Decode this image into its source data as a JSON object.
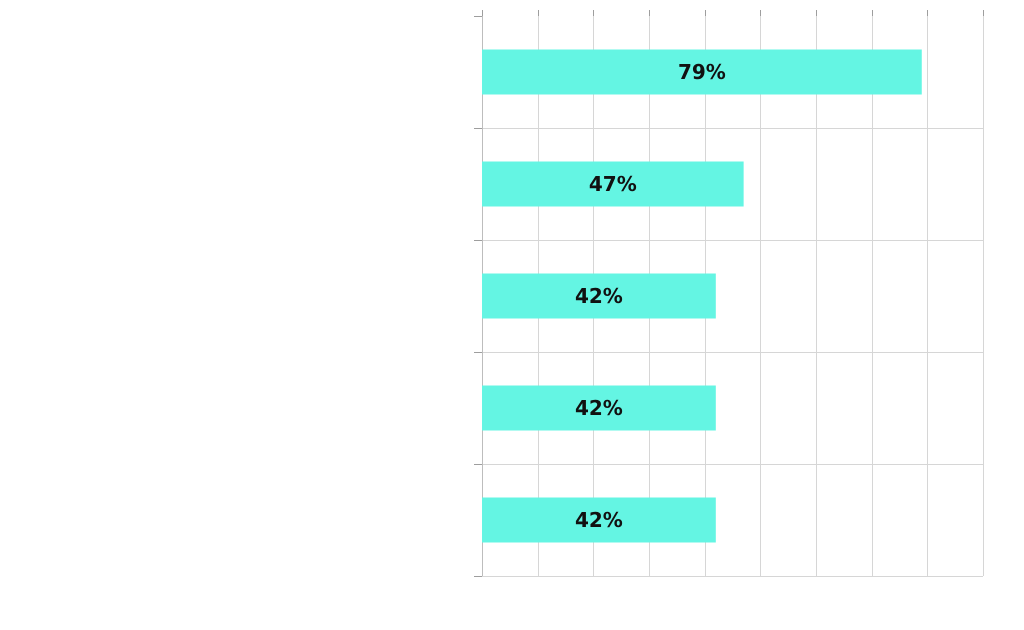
{
  "chart_data": {
    "type": "bar",
    "orientation": "horizontal",
    "categories": [
      "",
      "",
      "",
      "",
      ""
    ],
    "values": [
      79,
      47,
      42,
      42,
      42
    ],
    "data_labels": [
      "79%",
      "47%",
      "42%",
      "42%",
      "42%"
    ],
    "unit": "%",
    "xlim": [
      0,
      90
    ],
    "x_grid_step": 10,
    "grid": true,
    "legend": "none",
    "title": "",
    "xlabel": "",
    "ylabel": "",
    "colors": {
      "bar": "#64F5E3",
      "label": "#111111",
      "grid": "#d6d6d6"
    }
  }
}
